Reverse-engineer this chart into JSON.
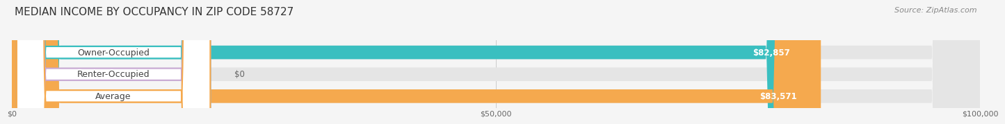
{
  "title": "MEDIAN INCOME BY OCCUPANCY IN ZIP CODE 58727",
  "source": "Source: ZipAtlas.com",
  "categories": [
    "Owner-Occupied",
    "Renter-Occupied",
    "Average"
  ],
  "values": [
    82857,
    0,
    83571
  ],
  "bar_colors": [
    "#3abfc0",
    "#c8a8d3",
    "#f5a94e"
  ],
  "value_labels": [
    "$82,857",
    "$0",
    "$83,571"
  ],
  "xlim": [
    0,
    100000
  ],
  "xticks": [
    0,
    50000,
    100000
  ],
  "xtick_labels": [
    "$0",
    "$50,000",
    "$100,000"
  ],
  "bar_height": 0.62,
  "background_color": "#f5f5f5",
  "bar_bg_color": "#e5e5e5",
  "title_fontsize": 11,
  "source_fontsize": 8,
  "label_fontsize": 9,
  "value_fontsize": 8.5,
  "tick_fontsize": 8
}
